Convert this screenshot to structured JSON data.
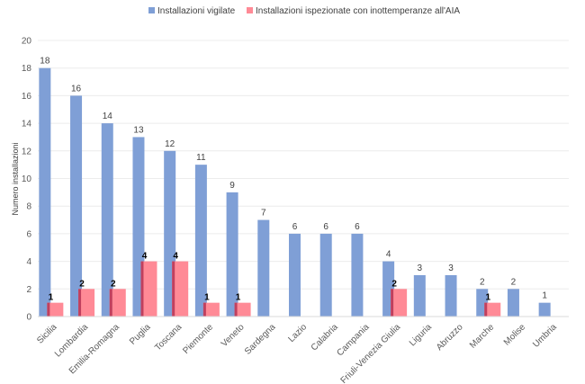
{
  "chart_data": {
    "type": "bar",
    "title": "",
    "xlabel": "",
    "ylabel": "Numero installazioni",
    "ylim": [
      0,
      20
    ],
    "yticks": [
      0,
      2,
      4,
      6,
      8,
      10,
      12,
      14,
      16,
      18,
      20
    ],
    "grid": true,
    "legend_position": "top-center",
    "categories": [
      "Sicilia",
      "Lombardia",
      "Emilia-Romagna",
      "Puglia",
      "Toscana",
      "Piemonte",
      "Veneto",
      "Sardegna",
      "Lazio",
      "Calabria",
      "Campania",
      "Friuli-Venezia Giulia",
      "Liguria",
      "Abruzzo",
      "Marche",
      "Molise",
      "Umbria"
    ],
    "series": [
      {
        "name": "Installazioni vigilate",
        "color": "#7f9fd6",
        "values": [
          18,
          16,
          14,
          13,
          12,
          11,
          9,
          7,
          6,
          6,
          6,
          4,
          3,
          3,
          2,
          2,
          1
        ]
      },
      {
        "name": "Installazioni ispezionate con inottemperanze all'AIA",
        "color": "#ff8a96",
        "edge_color": "#c0405e",
        "values": [
          1,
          2,
          2,
          4,
          4,
          1,
          1,
          null,
          null,
          null,
          null,
          2,
          null,
          null,
          1,
          null,
          null
        ]
      }
    ]
  }
}
